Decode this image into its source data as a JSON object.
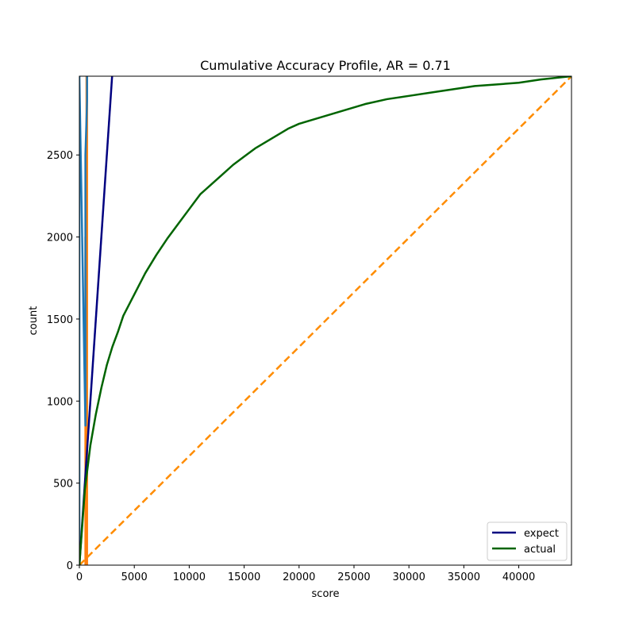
{
  "chart_data": {
    "type": "line",
    "title": "Cumulative Accuracy Profile, AR = 0.71",
    "xlabel": "score",
    "ylabel": "count",
    "xlim": [
      0,
      44800
    ],
    "ylim": [
      0,
      2980
    ],
    "xticks": [
      0,
      5000,
      10000,
      15000,
      20000,
      25000,
      30000,
      35000,
      40000
    ],
    "yticks": [
      0,
      500,
      1000,
      1500,
      2000,
      2500
    ],
    "grid": false,
    "legend_position": "lower-right",
    "series": [
      {
        "name": "expect",
        "color": "#000080",
        "style": "solid",
        "x": [
          0,
          2980
        ],
        "y": [
          0,
          2980
        ]
      },
      {
        "name": "actual",
        "color": "#006400",
        "style": "solid",
        "x": [
          0,
          500,
          1000,
          1500,
          2000,
          2500,
          3000,
          3500,
          4000,
          5000,
          6000,
          7000,
          8000,
          9000,
          10000,
          11000,
          12000,
          13000,
          14000,
          15000,
          16000,
          17000,
          18000,
          19000,
          20000,
          22000,
          24000,
          26000,
          28000,
          30000,
          32000,
          34000,
          36000,
          38000,
          40000,
          42000,
          44800
        ],
        "y": [
          0,
          460,
          730,
          920,
          1080,
          1220,
          1330,
          1420,
          1520,
          1650,
          1780,
          1890,
          1990,
          2080,
          2170,
          2260,
          2320,
          2380,
          2440,
          2490,
          2540,
          2580,
          2620,
          2660,
          2690,
          2730,
          2770,
          2810,
          2840,
          2860,
          2880,
          2900,
          2920,
          2930,
          2940,
          2960,
          2980
        ]
      },
      {
        "color": "#ff8c00",
        "style": "dashed",
        "x": [
          0,
          44800
        ],
        "y": [
          0,
          2980
        ]
      },
      {
        "color": "#ff7f0e",
        "style": "solid",
        "x": [
          550,
          550,
          600,
          600,
          650,
          650,
          700,
          700
        ],
        "y": [
          0,
          2000,
          2000,
          0,
          0,
          2980,
          2980,
          0
        ]
      },
      {
        "color": "#1f77b4",
        "style": "solid",
        "x": [
          0,
          0,
          550,
          550,
          700,
          700
        ],
        "y": [
          0,
          2980,
          850,
          2500,
          2830,
          2980
        ]
      }
    ]
  }
}
